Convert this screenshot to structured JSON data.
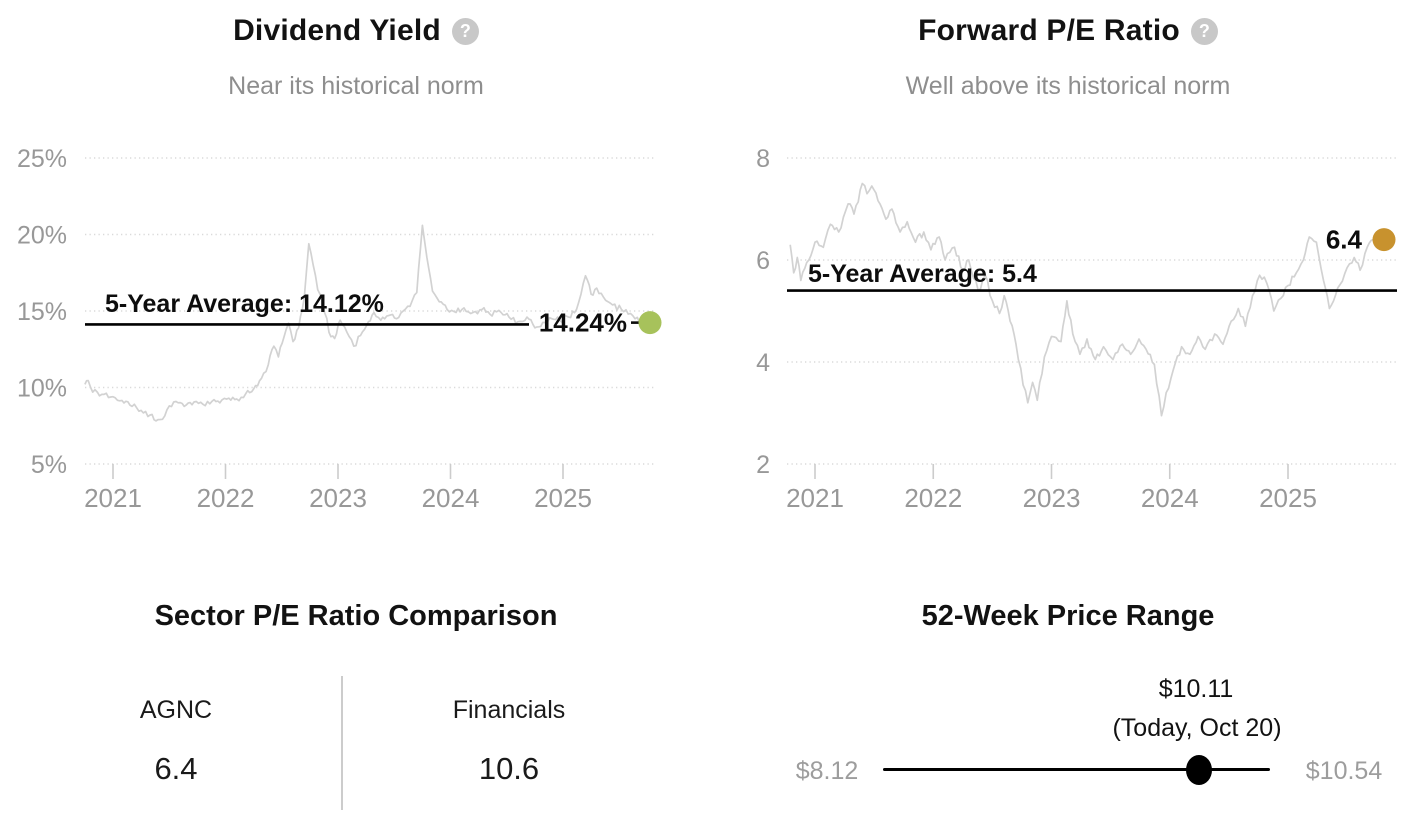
{
  "icons": {
    "help_glyph": "?"
  },
  "chart_data": [
    {
      "type": "line",
      "id": "dividend_yield",
      "title": "Dividend Yield",
      "subtitle": "Near its historical norm",
      "line_color": "#d2d2d2",
      "dot_color": "#a7c25b",
      "avg_line": {
        "label": "5-Year Average: 14.12%",
        "value": 14.12,
        "color": "#000000"
      },
      "current": {
        "label": "14.24%",
        "value": 14.24
      },
      "ylim": [
        5,
        25
      ],
      "yticks": [
        {
          "value": 25,
          "label": "25%"
        },
        {
          "value": 20,
          "label": "20%"
        },
        {
          "value": 15,
          "label": "15%"
        },
        {
          "value": 10,
          "label": "10%"
        },
        {
          "value": 5,
          "label": "5%"
        }
      ],
      "xticks": [
        {
          "value": 2021,
          "label": "2021"
        },
        {
          "value": 2022,
          "label": "2022"
        },
        {
          "value": 2023,
          "label": "2023"
        },
        {
          "value": 2024,
          "label": "2024"
        },
        {
          "value": 2025,
          "label": "2025"
        }
      ],
      "noise_amp": 0.2,
      "points": [
        [
          2020.75,
          10.2
        ],
        [
          2020.78,
          10.45
        ],
        [
          2020.82,
          9.7
        ],
        [
          2020.9,
          9.55
        ],
        [
          2021.0,
          9.4
        ],
        [
          2021.08,
          9.15
        ],
        [
          2021.15,
          8.85
        ],
        [
          2021.25,
          8.5
        ],
        [
          2021.33,
          8.2
        ],
        [
          2021.4,
          7.9
        ],
        [
          2021.46,
          8.15
        ],
        [
          2021.5,
          8.8
        ],
        [
          2021.58,
          9.0
        ],
        [
          2021.65,
          8.85
        ],
        [
          2021.72,
          9.05
        ],
        [
          2021.8,
          8.9
        ],
        [
          2021.88,
          9.1
        ],
        [
          2021.95,
          9.0
        ],
        [
          2022.03,
          9.3
        ],
        [
          2022.1,
          9.25
        ],
        [
          2022.18,
          9.6
        ],
        [
          2022.25,
          9.9
        ],
        [
          2022.32,
          10.6
        ],
        [
          2022.38,
          11.5
        ],
        [
          2022.43,
          12.7
        ],
        [
          2022.47,
          12.0
        ],
        [
          2022.52,
          13.3
        ],
        [
          2022.56,
          14.2
        ],
        [
          2022.6,
          13.0
        ],
        [
          2022.65,
          13.9
        ],
        [
          2022.7,
          15.9
        ],
        [
          2022.74,
          19.4
        ],
        [
          2022.78,
          18.0
        ],
        [
          2022.82,
          16.4
        ],
        [
          2022.86,
          15.8
        ],
        [
          2022.92,
          13.6
        ],
        [
          2022.97,
          13.2
        ],
        [
          2023.02,
          14.4
        ],
        [
          2023.08,
          13.6
        ],
        [
          2023.14,
          12.7
        ],
        [
          2023.2,
          13.4
        ],
        [
          2023.27,
          14.3
        ],
        [
          2023.32,
          14.9
        ],
        [
          2023.38,
          14.4
        ],
        [
          2023.45,
          14.7
        ],
        [
          2023.52,
          14.5
        ],
        [
          2023.58,
          15.0
        ],
        [
          2023.64,
          15.3
        ],
        [
          2023.7,
          16.2
        ],
        [
          2023.75,
          20.6
        ],
        [
          2023.79,
          18.5
        ],
        [
          2023.84,
          16.3
        ],
        [
          2023.9,
          15.6
        ],
        [
          2023.97,
          15.1
        ],
        [
          2024.05,
          14.9
        ],
        [
          2024.12,
          15.2
        ],
        [
          2024.2,
          14.9
        ],
        [
          2024.28,
          15.1
        ],
        [
          2024.35,
          14.8
        ],
        [
          2024.45,
          14.9
        ],
        [
          2024.52,
          14.6
        ],
        [
          2024.6,
          14.3
        ],
        [
          2024.68,
          14.6
        ],
        [
          2024.75,
          13.9
        ],
        [
          2024.82,
          14.25
        ],
        [
          2024.9,
          14.5
        ],
        [
          2024.97,
          14.4
        ],
        [
          2025.05,
          14.6
        ],
        [
          2025.12,
          15.1
        ],
        [
          2025.2,
          17.3
        ],
        [
          2025.25,
          16.1
        ],
        [
          2025.3,
          16.5
        ],
        [
          2025.36,
          15.9
        ],
        [
          2025.44,
          15.4
        ],
        [
          2025.52,
          15.1
        ],
        [
          2025.58,
          14.8
        ],
        [
          2025.64,
          14.5
        ],
        [
          2025.7,
          14.35
        ]
      ]
    },
    {
      "type": "line",
      "id": "forward_pe_ratio",
      "title": "Forward P/E Ratio",
      "subtitle": "Well above its historical norm",
      "line_color": "#d2d2d2",
      "dot_color": "#c8922e",
      "avg_line": {
        "label": "5-Year Average: 5.4",
        "value": 5.4,
        "color": "#000000"
      },
      "current": {
        "label": "6.4",
        "value": 6.4
      },
      "ylim": [
        2,
        8
      ],
      "yticks": [
        {
          "value": 8,
          "label": "8"
        },
        {
          "value": 6,
          "label": "6"
        },
        {
          "value": 4,
          "label": "4"
        },
        {
          "value": 2,
          "label": "2"
        }
      ],
      "xticks": [
        {
          "value": 2021,
          "label": "2021"
        },
        {
          "value": 2022,
          "label": "2022"
        },
        {
          "value": 2023,
          "label": "2023"
        },
        {
          "value": 2024,
          "label": "2024"
        },
        {
          "value": 2025,
          "label": "2025"
        }
      ],
      "noise_amp": 0.065,
      "points": [
        [
          2020.79,
          6.3
        ],
        [
          2020.82,
          5.75
        ],
        [
          2020.85,
          6.05
        ],
        [
          2020.88,
          5.6
        ],
        [
          2020.93,
          5.95
        ],
        [
          2021.0,
          6.35
        ],
        [
          2021.07,
          6.25
        ],
        [
          2021.13,
          6.7
        ],
        [
          2021.2,
          6.55
        ],
        [
          2021.28,
          7.1
        ],
        [
          2021.33,
          6.9
        ],
        [
          2021.4,
          7.5
        ],
        [
          2021.44,
          7.3
        ],
        [
          2021.48,
          7.45
        ],
        [
          2021.55,
          7.1
        ],
        [
          2021.6,
          6.8
        ],
        [
          2021.65,
          7.0
        ],
        [
          2021.72,
          6.55
        ],
        [
          2021.78,
          6.75
        ],
        [
          2021.85,
          6.35
        ],
        [
          2021.92,
          6.55
        ],
        [
          2021.98,
          6.2
        ],
        [
          2022.05,
          6.45
        ],
        [
          2022.1,
          6.0
        ],
        [
          2022.18,
          6.25
        ],
        [
          2022.25,
          5.8
        ],
        [
          2022.3,
          6.0
        ],
        [
          2022.38,
          5.4
        ],
        [
          2022.44,
          5.7
        ],
        [
          2022.5,
          5.2
        ],
        [
          2022.56,
          4.95
        ],
        [
          2022.6,
          5.3
        ],
        [
          2022.65,
          4.8
        ],
        [
          2022.7,
          4.35
        ],
        [
          2022.76,
          3.55
        ],
        [
          2022.8,
          3.2
        ],
        [
          2022.84,
          3.6
        ],
        [
          2022.88,
          3.25
        ],
        [
          2022.94,
          4.1
        ],
        [
          2023.0,
          4.5
        ],
        [
          2023.08,
          4.4
        ],
        [
          2023.13,
          5.2
        ],
        [
          2023.18,
          4.55
        ],
        [
          2023.24,
          4.15
        ],
        [
          2023.3,
          4.45
        ],
        [
          2023.37,
          4.05
        ],
        [
          2023.44,
          4.3
        ],
        [
          2023.52,
          4.05
        ],
        [
          2023.6,
          4.35
        ],
        [
          2023.67,
          4.15
        ],
        [
          2023.74,
          4.45
        ],
        [
          2023.8,
          4.25
        ],
        [
          2023.87,
          3.95
        ],
        [
          2023.93,
          2.95
        ],
        [
          2023.97,
          3.4
        ],
        [
          2024.03,
          3.85
        ],
        [
          2024.1,
          4.3
        ],
        [
          2024.17,
          4.15
        ],
        [
          2024.24,
          4.5
        ],
        [
          2024.3,
          4.25
        ],
        [
          2024.38,
          4.55
        ],
        [
          2024.45,
          4.35
        ],
        [
          2024.52,
          4.8
        ],
        [
          2024.58,
          5.05
        ],
        [
          2024.64,
          4.7
        ],
        [
          2024.7,
          5.3
        ],
        [
          2024.76,
          5.7
        ],
        [
          2024.82,
          5.55
        ],
        [
          2024.88,
          5.0
        ],
        [
          2024.94,
          5.25
        ],
        [
          2025.0,
          5.5
        ],
        [
          2025.07,
          5.75
        ],
        [
          2025.13,
          6.0
        ],
        [
          2025.18,
          6.45
        ],
        [
          2025.24,
          6.35
        ],
        [
          2025.3,
          5.6
        ],
        [
          2025.35,
          5.05
        ],
        [
          2025.42,
          5.45
        ],
        [
          2025.5,
          5.85
        ],
        [
          2025.56,
          6.05
        ],
        [
          2025.61,
          5.8
        ],
        [
          2025.67,
          6.25
        ],
        [
          2025.72,
          6.4
        ]
      ]
    },
    {
      "type": "table",
      "id": "sector_pe_comparison",
      "title": "Sector P/E Ratio Comparison",
      "columns": [
        "AGNC",
        "Financials"
      ],
      "values": [
        "6.4",
        "10.6"
      ]
    },
    {
      "type": "range",
      "id": "week52_price_range",
      "title": "52-Week Price Range",
      "min_label": "$8.12",
      "max_label": "$10.54",
      "current_label": "$10.11",
      "current_note": "(Today, Oct 20)",
      "min": 8.12,
      "max": 10.54,
      "current": 10.11
    }
  ]
}
